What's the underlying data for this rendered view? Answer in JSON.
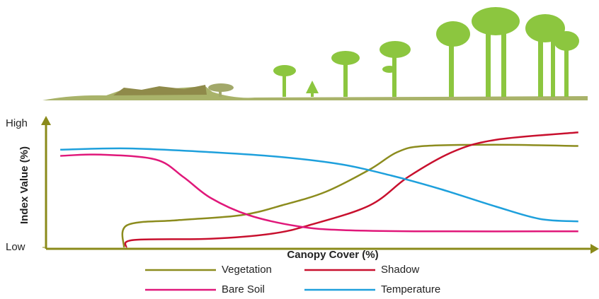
{
  "chart_data": {
    "type": "line",
    "xlabel": "Canopy Cover (%)",
    "ylabel": "Index Value (%)",
    "xlim": [
      0,
      100
    ],
    "ylim": [
      0,
      100
    ],
    "yticks": [
      {
        "value": 0,
        "label": "Low"
      },
      {
        "value": 100,
        "label": "High"
      }
    ],
    "series": [
      {
        "name": "Vegetation",
        "color": "#8c8c1e",
        "x": [
          14.2,
          14.8,
          24,
          35.5,
          43,
          51,
          59,
          64,
          69,
          82,
          97
        ],
        "values": [
          0,
          18,
          22,
          26,
          34,
          45,
          63,
          77,
          82,
          83,
          82
        ]
      },
      {
        "name": "Shadow",
        "color": "#c8102e",
        "x": [
          14.6,
          16,
          30,
          41,
          48,
          59,
          66,
          74,
          82,
          97
        ],
        "values": [
          0,
          6,
          7,
          11,
          18,
          34,
          57,
          77,
          87,
          93
        ]
      },
      {
        "name": "Bare Soil",
        "color": "#e0187a",
        "x": [
          2.6,
          10,
          20,
          25,
          30,
          37,
          46,
          54,
          69,
          97
        ],
        "values": [
          74,
          75,
          71,
          57,
          40,
          26,
          17,
          14,
          13,
          13
        ]
      },
      {
        "name": "Temperature",
        "color": "#1ea0dc",
        "x": [
          2.6,
          15,
          30,
          43,
          54,
          63,
          72,
          82,
          90,
          97
        ],
        "values": [
          79,
          80,
          77,
          73,
          67,
          58,
          47,
          33,
          23,
          21
        ]
      }
    ]
  }
}
